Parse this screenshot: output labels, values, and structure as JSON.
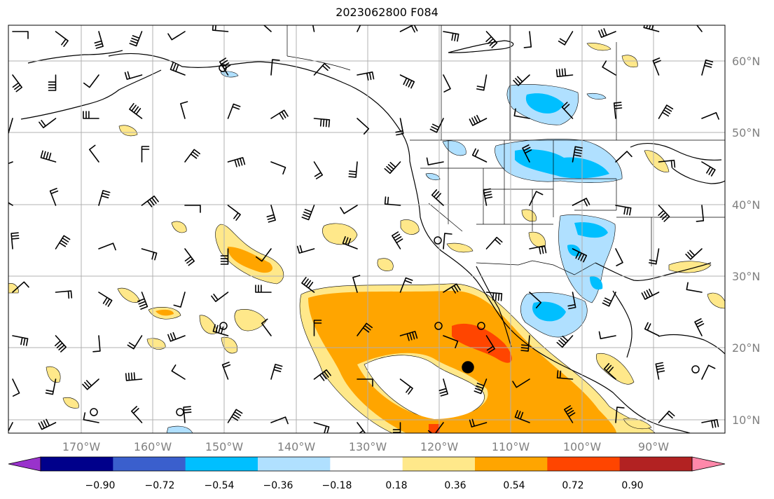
{
  "title": "2023062800 F084",
  "map": {
    "lon_ticks": [
      "170°W",
      "160°W",
      "150°W",
      "140°W",
      "130°W",
      "120°W",
      "110°W",
      "100°W",
      "90°W"
    ],
    "lat_ticks": [
      "60°N",
      "50°N",
      "40°N",
      "30°N",
      "20°N",
      "10°N"
    ],
    "grid": true,
    "lon_range": [
      -180,
      -80
    ],
    "lat_range": [
      8,
      65
    ]
  },
  "colorbar": {
    "ticks": [
      "−0.90",
      "−0.72",
      "−0.54",
      "−0.36",
      "−0.18",
      "0.18",
      "0.36",
      "0.54",
      "0.72",
      "0.90"
    ],
    "colors": [
      "#9932cc",
      "#00008b",
      "#3a5fcd",
      "#00bfff",
      "#b0e0ff",
      "#ffffff",
      "#ffe88a",
      "#ffa500",
      "#ff4500",
      "#b22222",
      "#ff88aa"
    ]
  },
  "colors": {
    "land_line": "#000000",
    "grid_line": "#b0b0b0",
    "tick_label": "#808080"
  }
}
